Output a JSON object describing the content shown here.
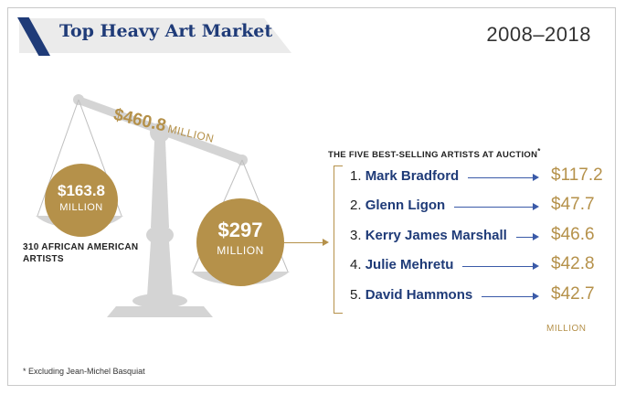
{
  "header": {
    "title": "Top Heavy Art Market",
    "years": "2008–2018"
  },
  "chart_data": {
    "type": "bar",
    "scale": {
      "total": {
        "amount": "$460.8",
        "unit": "MILLION",
        "value": 460.8
      },
      "left": {
        "amount": "$163.8",
        "unit": "MILLION",
        "value": 163.8,
        "label": "310 AFRICAN AMERICAN ARTISTS"
      },
      "right": {
        "amount": "$297",
        "unit": "MILLION",
        "value": 297
      }
    },
    "list_title": "THE FIVE BEST-SELLING ARTISTS AT AUCTION",
    "list_title_marker": "*",
    "categories": [
      "Mark Bradford",
      "Glenn Ligon",
      "Kerry James Marshall",
      "Julie Mehretu",
      "David Hammons"
    ],
    "values": [
      117.2,
      47.7,
      46.6,
      42.8,
      42.7
    ],
    "rows": [
      {
        "rank": "1.",
        "name": "Mark Bradford",
        "value_label": "$117.2"
      },
      {
        "rank": "2.",
        "name": "Glenn Ligon",
        "value_label": "$47.7"
      },
      {
        "rank": "3.",
        "name": "Kerry James Marshall",
        "value_label": "$46.6"
      },
      {
        "rank": "4.",
        "name": "Julie Mehretu",
        "value_label": "$42.8"
      },
      {
        "rank": "5.",
        "name": "David Hammons",
        "value_label": "$42.7"
      }
    ],
    "unit_label": "MILLION"
  },
  "footnote": "* Excluding Jean-Michel Basquiat",
  "colors": {
    "navy": "#1f3b78",
    "gold": "#b5914a",
    "scale_gray": "#d4d4d4",
    "arrow_blue": "#3a5aa8"
  }
}
